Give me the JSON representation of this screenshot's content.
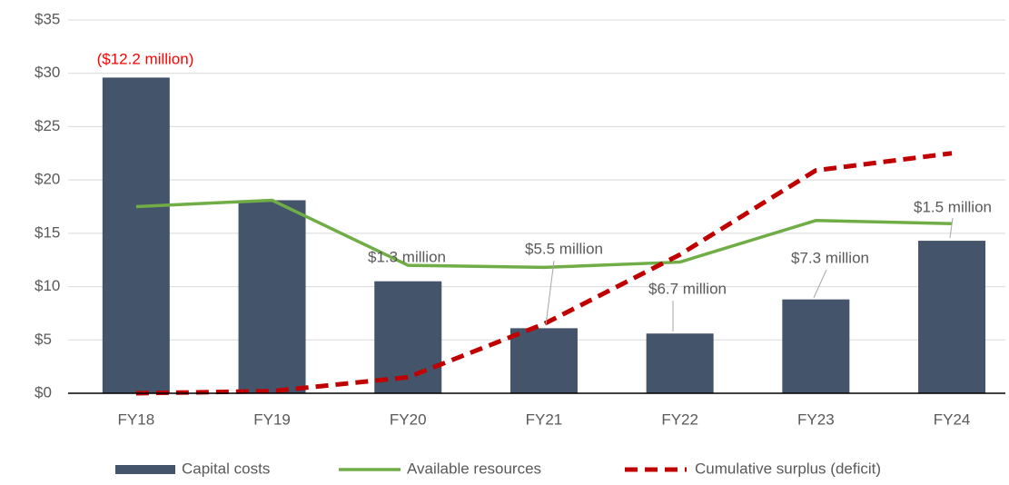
{
  "chart_data": {
    "type": "bar-line",
    "categories": [
      "FY18",
      "FY19",
      "FY20",
      "FY21",
      "FY22",
      "FY23",
      "FY24"
    ],
    "series": [
      {
        "name": "Capital costs",
        "type": "bar",
        "color": "#44546a",
        "values": [
          29.6,
          18.1,
          10.5,
          6.1,
          5.6,
          8.8,
          14.3
        ]
      },
      {
        "name": "Available resources",
        "type": "line",
        "color": "#70ad47",
        "values": [
          17.5,
          18.1,
          12.0,
          11.8,
          12.3,
          16.2,
          15.9
        ]
      },
      {
        "name": "Cumulative surplus (deficit)",
        "type": "dashed-line",
        "color": "#c00000",
        "values": [
          0,
          0.2,
          1.5,
          6.5,
          13.0,
          20.9,
          22.5
        ]
      }
    ],
    "ylim": [
      0,
      35
    ],
    "yticks": [
      {
        "value": 0,
        "label": "$0"
      },
      {
        "value": 5,
        "label": "$5"
      },
      {
        "value": 10,
        "label": "$10"
      },
      {
        "value": 15,
        "label": "$15"
      },
      {
        "value": 20,
        "label": "$20"
      },
      {
        "value": 25,
        "label": "$25"
      },
      {
        "value": 30,
        "label": "$30"
      },
      {
        "value": 35,
        "label": "$35"
      }
    ],
    "grid": true,
    "legend": "bottom",
    "annotations": [
      {
        "text": "($12.2 million)",
        "category": "FY18",
        "color": "#ff0000"
      },
      {
        "text": "$1.3 million",
        "category": "FY20",
        "color": "#595959"
      },
      {
        "text": "$5.5 million",
        "category": "FY21",
        "color": "#595959"
      },
      {
        "text": "$6.7 million",
        "category": "FY22",
        "color": "#595959"
      },
      {
        "text": "$7.3 million",
        "category": "FY23",
        "color": "#595959"
      },
      {
        "text": "$1.5 million",
        "category": "FY24",
        "color": "#595959"
      }
    ]
  }
}
